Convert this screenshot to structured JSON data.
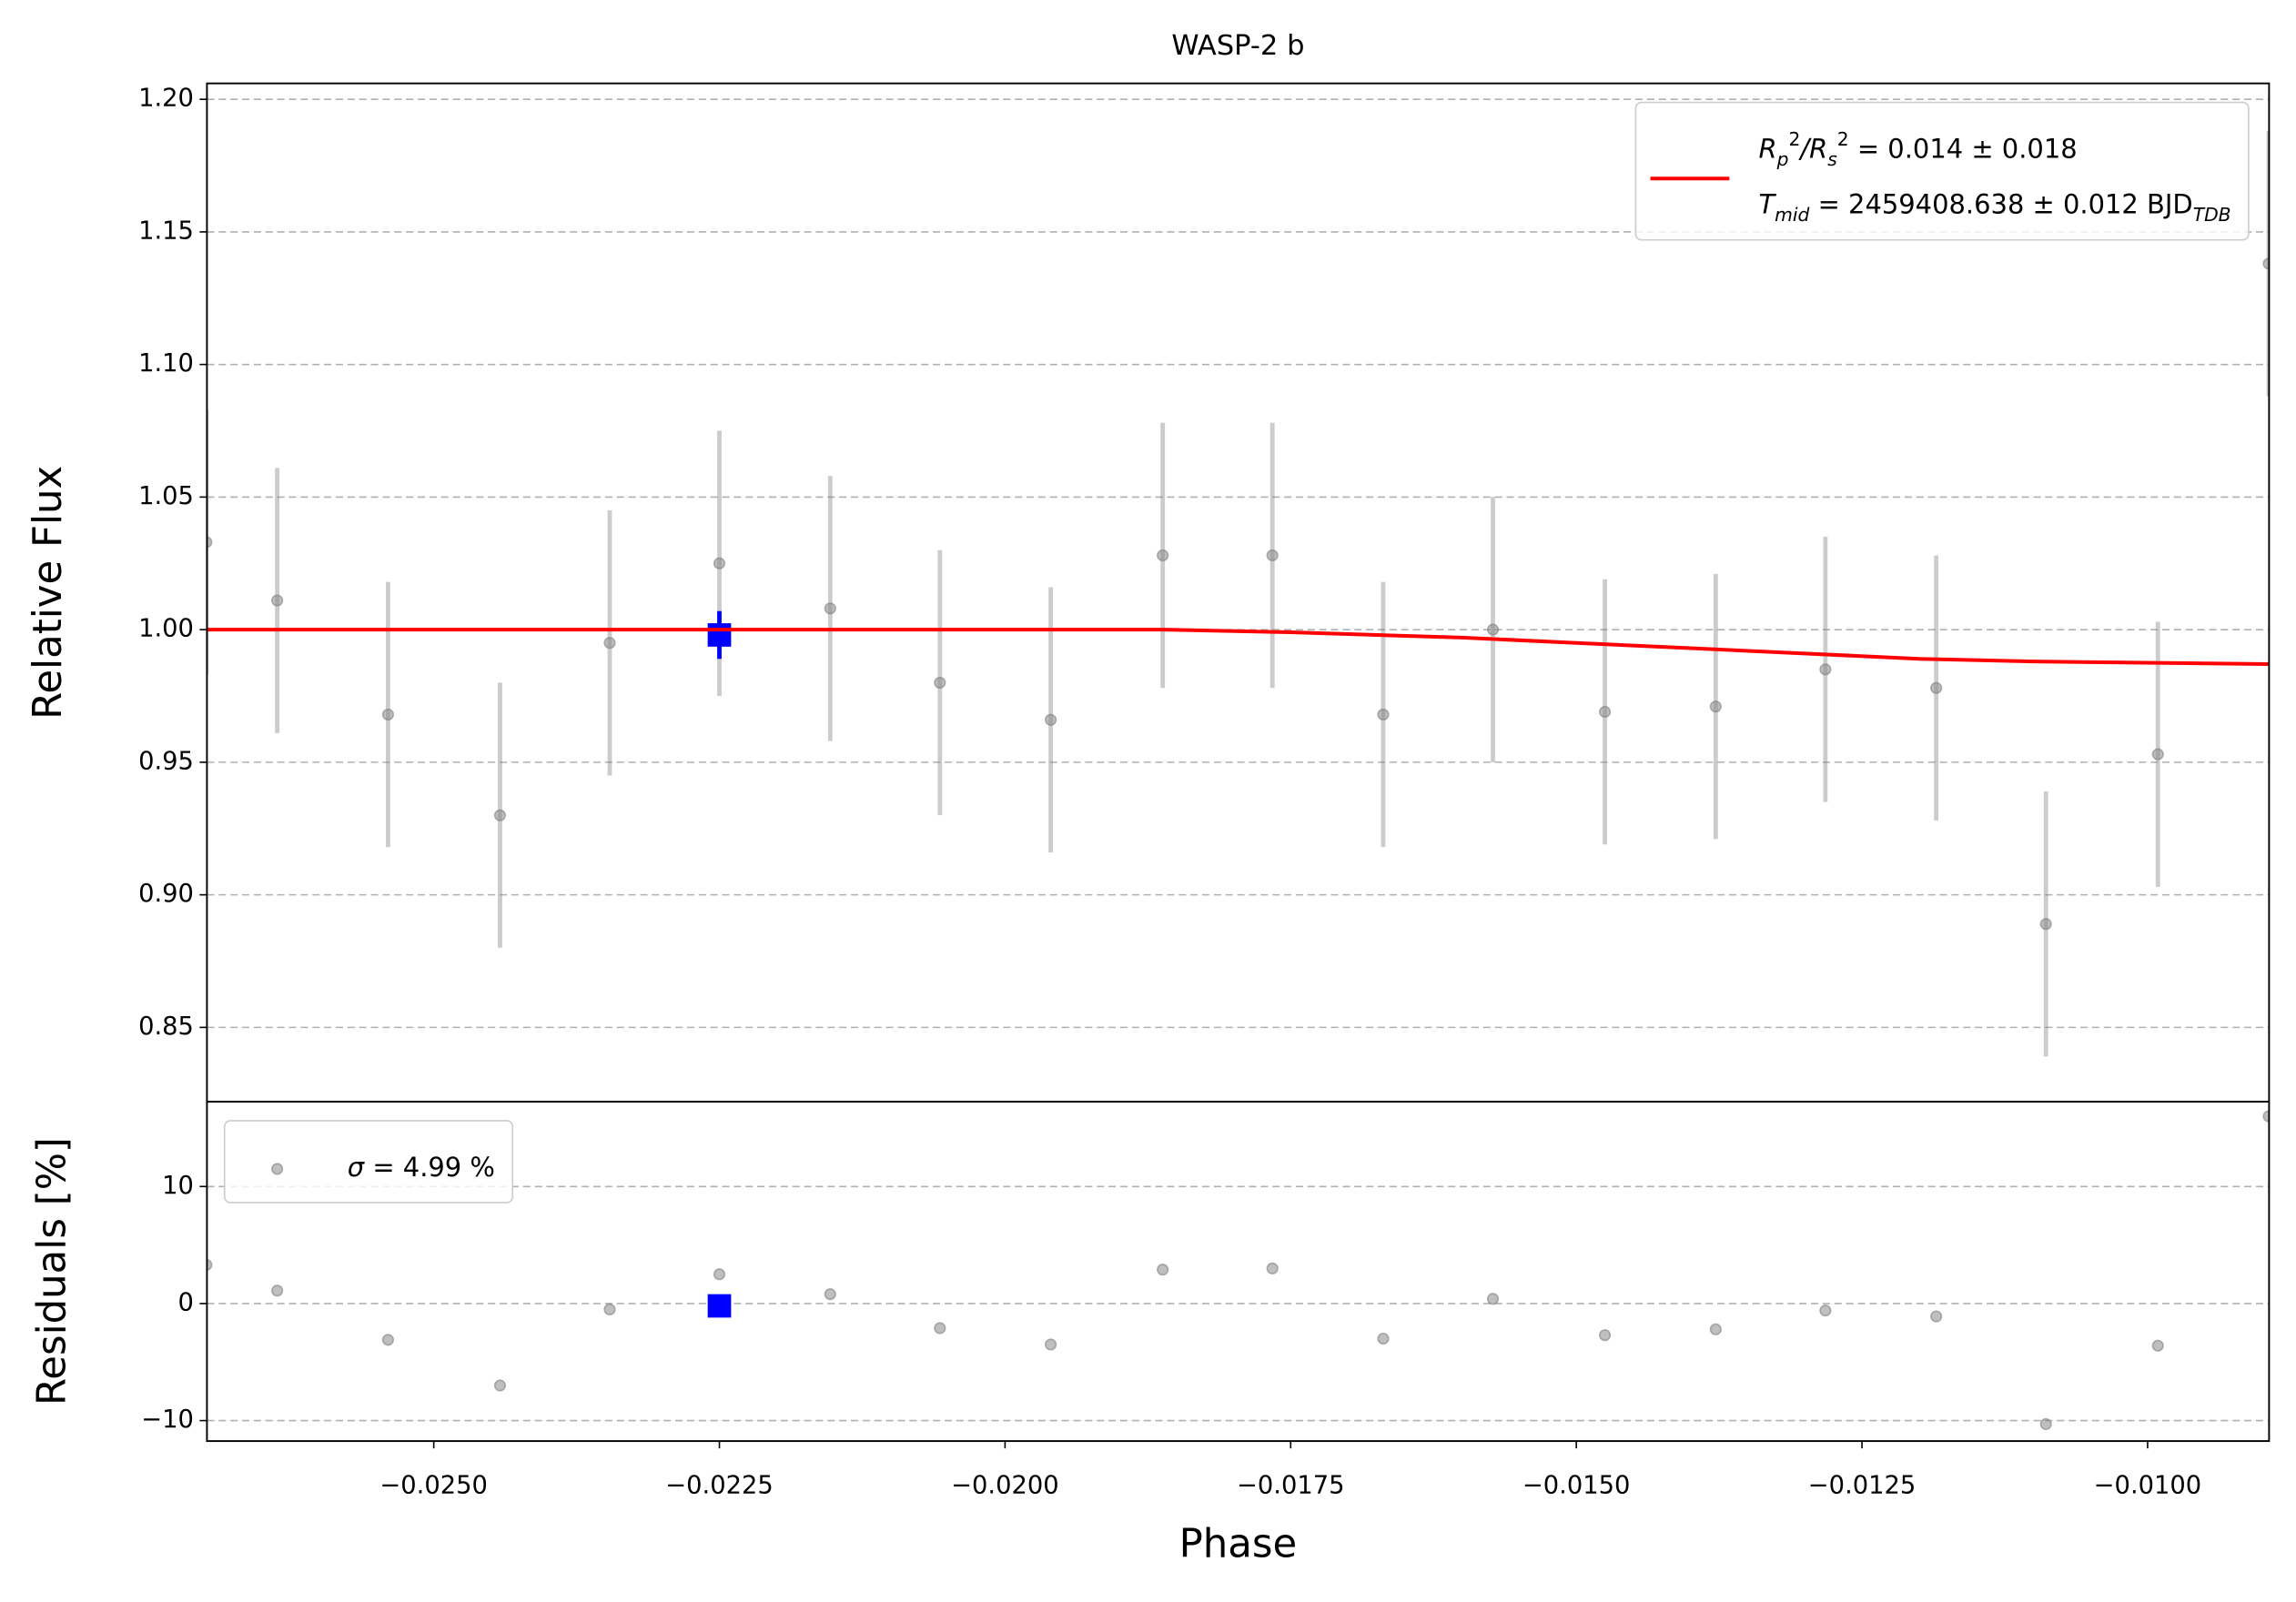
{
  "chart_data": [
    {
      "type": "errorbar",
      "title": "WASP-2 b",
      "y_label": "Relative Flux",
      "xlim": [
        -0.026985,
        -0.008937
      ],
      "ylim": [
        0.822,
        1.206
      ],
      "yticks": [
        0.85,
        {
          "value": 0.9,
          "label": "0.90"
        },
        0.95,
        {
          "value": 1.0,
          "label": "1.00"
        },
        1.05,
        {
          "value": 1.1,
          "label": "1.10"
        },
        1.15,
        {
          "value": 1.2,
          "label": "1.20"
        }
      ],
      "grid": true,
      "legend": "upper right",
      "x": [
        -0.02699,
        -0.02637,
        -0.0254,
        -0.02442,
        -0.02346,
        -0.0225,
        -0.02153,
        -0.02057,
        -0.0196,
        -0.01862,
        -0.01766,
        -0.01669,
        -0.01573,
        -0.01475,
        -0.01378,
        -0.01282,
        -0.01185,
        -0.01089,
        -0.00991,
        -0.00894
      ],
      "series": [
        {
          "color": "#808080",
          "values": [
            1.033,
            1.011,
            0.968,
            0.93,
            0.995,
            1.025,
            1.008,
            0.98,
            0.966,
            1.028,
            1.028,
            0.968,
            1.0,
            0.969,
            0.971,
            0.985,
            0.978,
            0.889,
            0.953,
            1.138
          ],
          "errors": [
            0.05,
            0.05,
            0.05,
            0.05,
            0.05,
            0.05,
            0.05,
            0.05,
            0.05,
            0.05,
            0.05,
            0.05,
            0.05,
            0.05,
            0.05,
            0.05,
            0.05,
            0.05,
            0.05,
            0.05
          ]
        },
        {
          "color": "#0000ff",
          "marker": "square",
          "x": [
            -0.0225
          ],
          "values": [
            0.998
          ],
          "errors": [
            0.009
          ]
        },
        {
          "color": "#ff0000",
          "style": "line",
          "name": [
            [
              {
                "text": "R",
                "italic": true
              },
              {
                "text": "p",
                "italic": true,
                "shift": "sub"
              },
              {
                "text": "2",
                "shift": "super"
              },
              {
                "text": "/R",
                "italic": true
              },
              {
                "text": "s",
                "italic": true,
                "shift": "sub"
              },
              {
                "text": "2",
                "shift": "super"
              },
              {
                "text": " = 0.014 ± 0.018"
              }
            ],
            [
              {
                "text": "T",
                "italic": true
              },
              {
                "text": "mid",
                "italic": true,
                "shift": "sub"
              },
              {
                "text": " = 2459408.638 ± 0.012 BJD"
              },
              {
                "text": "TDB",
                "italic": true,
                "shift": "sub"
              }
            ]
          ],
          "x": [
            -0.02699,
            -0.0186,
            -0.0175,
            -0.016,
            -0.015,
            -0.014,
            -0.013,
            -0.012,
            -0.011,
            -0.00894
          ],
          "values": [
            1.0,
            1.0,
            0.999,
            0.997,
            0.995,
            0.993,
            0.991,
            0.989,
            0.988,
            0.987
          ]
        }
      ]
    },
    {
      "type": "scatter",
      "y_label": "Residuals [%]",
      "x_label": "Phase",
      "xlim": [
        -0.026985,
        -0.008937
      ],
      "ylim": [
        -11.75,
        17.25
      ],
      "xticks": [
        {
          "value": -0.025,
          "label": "−0.0250"
        },
        {
          "value": -0.0225,
          "label": "−0.0225"
        },
        {
          "value": -0.02,
          "label": "−0.0200"
        },
        {
          "value": -0.0175,
          "label": "−0.0175"
        },
        {
          "value": -0.015,
          "label": "−0.0150"
        },
        {
          "value": -0.0125,
          "label": "−0.0125"
        },
        {
          "value": -0.01,
          "label": "−0.0100"
        }
      ],
      "yticks": [
        {
          "value": -10,
          "label": "−10"
        },
        0,
        10
      ],
      "grid": true,
      "legend": "upper left",
      "x": [
        -0.02699,
        -0.02637,
        -0.0254,
        -0.02442,
        -0.02346,
        -0.0225,
        -0.02153,
        -0.02057,
        -0.0196,
        -0.01862,
        -0.01766,
        -0.01669,
        -0.01573,
        -0.01475,
        -0.01378,
        -0.01282,
        -0.01185,
        -0.01089,
        -0.00991,
        -0.00894
      ],
      "series": [
        {
          "color": "#808080",
          "name": [
            {
              "text": "σ",
              "italic": true
            },
            {
              "text": " = 4.99 %"
            }
          ],
          "values": [
            3.3,
            1.1,
            -3.1,
            -7.0,
            -0.5,
            2.5,
            0.8,
            -2.1,
            -3.5,
            2.9,
            3.0,
            -3.0,
            0.4,
            -2.7,
            -2.2,
            -0.6,
            -1.1,
            -10.3,
            -3.6,
            16.0
          ]
        },
        {
          "color": "#0000ff",
          "marker": "square",
          "x": [
            -0.0225
          ],
          "values": [
            -0.2
          ]
        }
      ]
    }
  ]
}
